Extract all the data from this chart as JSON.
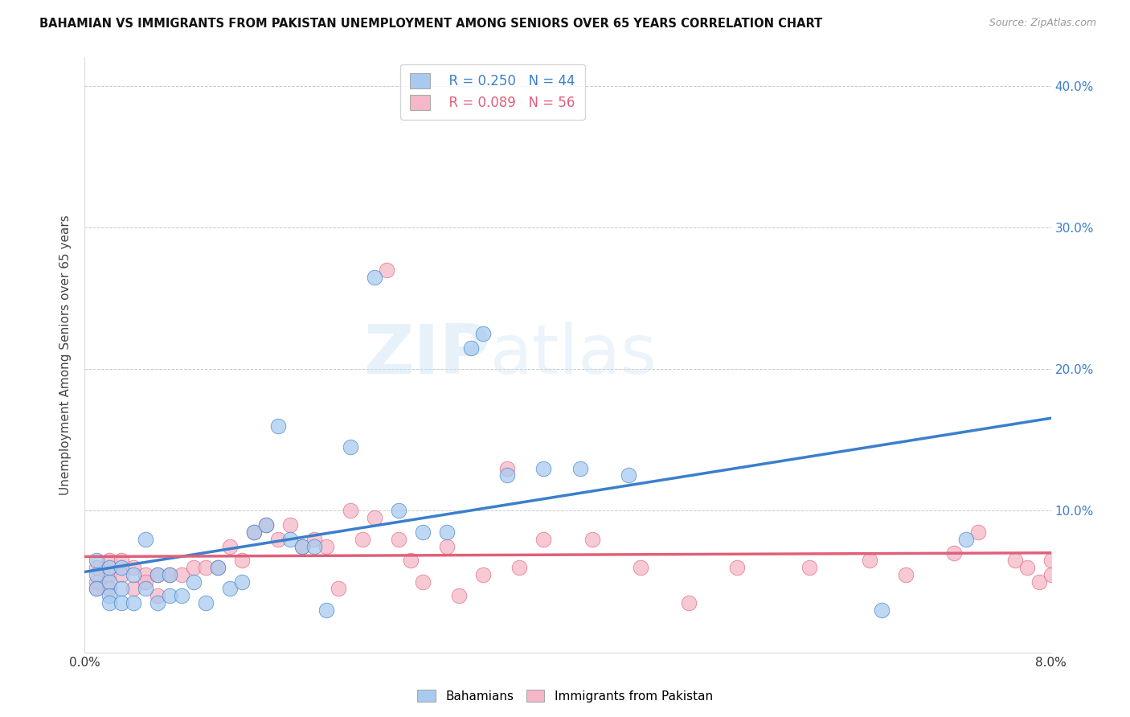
{
  "title": "BAHAMIAN VS IMMIGRANTS FROM PAKISTAN UNEMPLOYMENT AMONG SENIORS OVER 65 YEARS CORRELATION CHART",
  "source": "Source: ZipAtlas.com",
  "ylabel": "Unemployment Among Seniors over 65 years",
  "legend_label1": "Bahamians",
  "legend_label2": "Immigrants from Pakistan",
  "legend_r1": "R = 0.250",
  "legend_n1": "N = 44",
  "legend_r2": "R = 0.089",
  "legend_n2": "N = 56",
  "yticks": [
    0.0,
    0.1,
    0.2,
    0.3,
    0.4
  ],
  "ytick_labels": [
    "",
    "10.0%",
    "20.0%",
    "30.0%",
    "40.0%"
  ],
  "color_blue": "#A8CAEE",
  "color_pink": "#F5B8C8",
  "color_blue_line": "#3B7FCC",
  "color_pink_line": "#E0607A",
  "watermark": "ZIPatlas",
  "blue_scatter_x": [
    0.001,
    0.001,
    0.001,
    0.002,
    0.002,
    0.002,
    0.002,
    0.003,
    0.003,
    0.003,
    0.004,
    0.004,
    0.005,
    0.005,
    0.006,
    0.006,
    0.007,
    0.007,
    0.008,
    0.009,
    0.01,
    0.011,
    0.012,
    0.013,
    0.014,
    0.015,
    0.016,
    0.017,
    0.018,
    0.019,
    0.02,
    0.022,
    0.024,
    0.026,
    0.028,
    0.03,
    0.032,
    0.033,
    0.035,
    0.038,
    0.041,
    0.045,
    0.066,
    0.073
  ],
  "blue_scatter_y": [
    0.055,
    0.065,
    0.045,
    0.05,
    0.06,
    0.04,
    0.035,
    0.06,
    0.045,
    0.035,
    0.055,
    0.035,
    0.08,
    0.045,
    0.055,
    0.035,
    0.055,
    0.04,
    0.04,
    0.05,
    0.035,
    0.06,
    0.045,
    0.05,
    0.085,
    0.09,
    0.16,
    0.08,
    0.075,
    0.075,
    0.03,
    0.145,
    0.265,
    0.1,
    0.085,
    0.085,
    0.215,
    0.225,
    0.125,
    0.13,
    0.13,
    0.125,
    0.03,
    0.08
  ],
  "pink_scatter_x": [
    0.001,
    0.001,
    0.001,
    0.002,
    0.002,
    0.002,
    0.003,
    0.003,
    0.004,
    0.004,
    0.005,
    0.005,
    0.006,
    0.006,
    0.007,
    0.008,
    0.009,
    0.01,
    0.011,
    0.012,
    0.013,
    0.014,
    0.015,
    0.016,
    0.017,
    0.018,
    0.019,
    0.02,
    0.021,
    0.022,
    0.023,
    0.024,
    0.025,
    0.026,
    0.027,
    0.028,
    0.03,
    0.031,
    0.033,
    0.035,
    0.036,
    0.038,
    0.042,
    0.046,
    0.05,
    0.054,
    0.06,
    0.065,
    0.068,
    0.072,
    0.074,
    0.077,
    0.078,
    0.079,
    0.08,
    0.08
  ],
  "pink_scatter_y": [
    0.05,
    0.06,
    0.045,
    0.055,
    0.065,
    0.045,
    0.065,
    0.055,
    0.06,
    0.045,
    0.055,
    0.05,
    0.055,
    0.04,
    0.055,
    0.055,
    0.06,
    0.06,
    0.06,
    0.075,
    0.065,
    0.085,
    0.09,
    0.08,
    0.09,
    0.075,
    0.08,
    0.075,
    0.045,
    0.1,
    0.08,
    0.095,
    0.27,
    0.08,
    0.065,
    0.05,
    0.075,
    0.04,
    0.055,
    0.13,
    0.06,
    0.08,
    0.08,
    0.06,
    0.035,
    0.06,
    0.06,
    0.065,
    0.055,
    0.07,
    0.085,
    0.065,
    0.06,
    0.05,
    0.055,
    0.065
  ]
}
